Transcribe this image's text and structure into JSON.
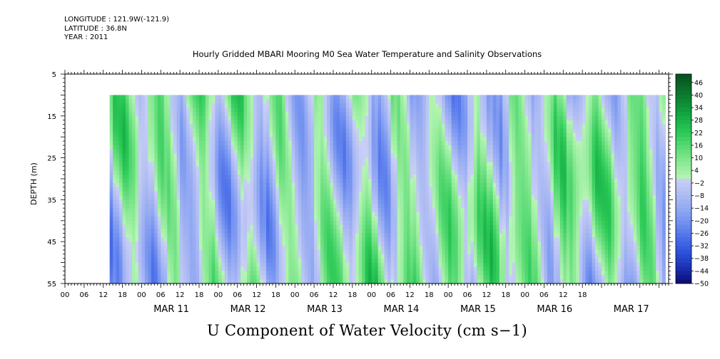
{
  "header": {
    "longitude": "LONGITUDE : 121.9W(-121.9)",
    "latitude": "LATITUDE : 36.8N",
    "year": "YEAR : 2011"
  },
  "chart_data": {
    "type": "heatmap",
    "title": "Hourly Gridded MBARI Mooring M0 Sea Water Temperature and Salinity Observations",
    "subtitle": "U Component of Water Velocity (cm s−1)",
    "ylabel": "DEPTH (m)",
    "y_ticks": [
      5,
      15,
      25,
      35,
      45,
      55
    ],
    "ylim": [
      55,
      5
    ],
    "y_data_range": [
      10,
      55
    ],
    "x_start": "2011-03-10 00:00",
    "x_end": "2011-03-17 21:00",
    "x_data_start": "2011-03-10 14:00",
    "x_data_end": "2011-03-17 20:00",
    "x_hour_ticks": [
      "00",
      "06",
      "12",
      "18",
      "00",
      "06",
      "12",
      "18",
      "00",
      "06",
      "12",
      "18",
      "00",
      "06",
      "12",
      "18",
      "00",
      "06",
      "12",
      "18",
      "00",
      "06",
      "12",
      "18",
      "00",
      "06",
      "12",
      "18"
    ],
    "x_day_labels": [
      "MAR 11",
      "MAR 12",
      "MAR 13",
      "MAR 14",
      "MAR 15",
      "MAR 16",
      "MAR 17"
    ],
    "colorbar": {
      "min": -50,
      "max": 50,
      "step": 2,
      "labels": [
        "46",
        "40",
        "34",
        "28",
        "22",
        "16",
        "10",
        "4",
        "−2",
        "−8",
        "−14",
        "−20",
        "−26",
        "−32",
        "−38",
        "−44",
        "−50"
      ],
      "label_values": [
        46,
        40,
        34,
        28,
        22,
        16,
        10,
        4,
        -2,
        -8,
        -14,
        -20,
        -26,
        -32,
        -38,
        -44,
        -50
      ],
      "colors_negative_to_positive": [
        "#0b0b6e",
        "#1a2fb0",
        "#2a50d8",
        "#4a6ee8",
        "#6f8ef0",
        "#93a9f2",
        "#b0bdf3",
        "#c9cff5"
      ],
      "colors_positive": [
        "#b6f5b6",
        "#8eea96",
        "#5fdc78",
        "#2fcb59",
        "#15b046",
        "#0d8f36",
        "#0a6e2a",
        "#06501e"
      ]
    }
  }
}
